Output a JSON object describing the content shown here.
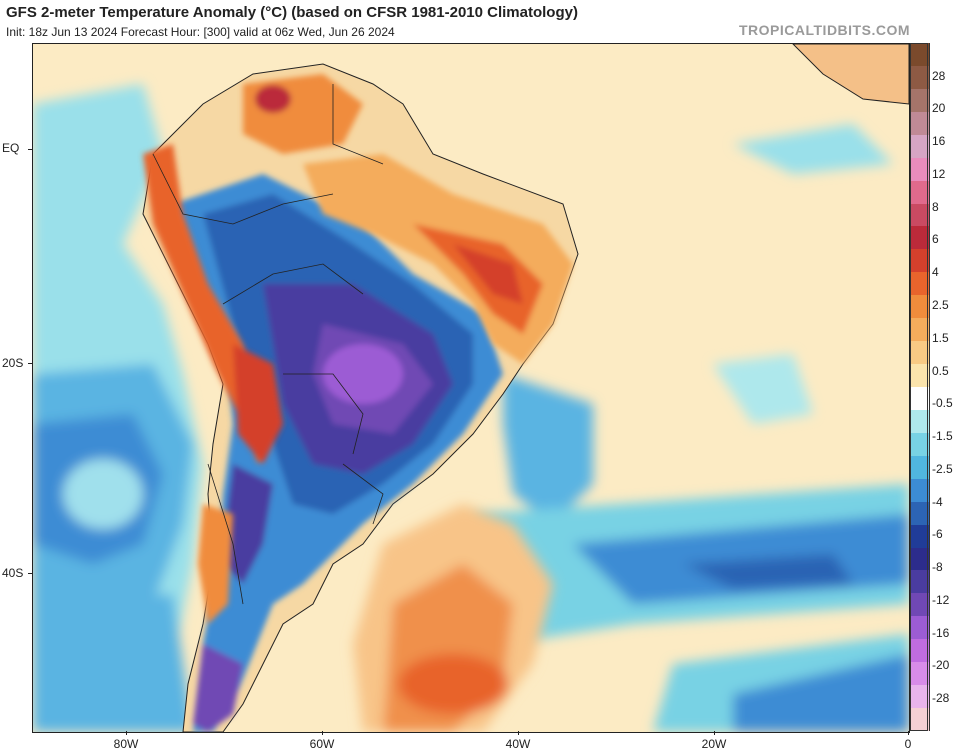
{
  "header": {
    "title": "GFS 2-meter Temperature Anomaly (°C) (based on CFSR 1981-2010 Climatology)",
    "subtitle": "Init: 18z Jun 13 2024   Forecast Hour: [300]   valid at 06z Wed, Jun 26 2024",
    "brand": "TROPICALTIDBITS.COM"
  },
  "axes": {
    "lat_labels": [
      "EQ",
      "20S",
      "40S"
    ],
    "lon_labels": [
      "80W",
      "60W",
      "40W",
      "20W",
      "0"
    ]
  },
  "colorbar": {
    "labels": [
      "28",
      "20",
      "16",
      "12",
      "8",
      "6",
      "4",
      "2.5",
      "1.5",
      "0.5",
      "-0.5",
      "-1.5",
      "-2.5",
      "-4",
      "-6",
      "-8",
      "-12",
      "-16",
      "-20",
      "-28"
    ],
    "colors": [
      "#7b4a2c",
      "#8e5a44",
      "#a5746a",
      "#c08a96",
      "#d6a5c4",
      "#e98cbc",
      "#e06a8c",
      "#c94a62",
      "#bb2a3a",
      "#d4402c",
      "#e8642c",
      "#f08c3c",
      "#f4ac5c",
      "#f8ca84",
      "#fbe4ac",
      "#ffffff",
      "#aee8ec",
      "#78d2e4",
      "#50b6e0",
      "#3c8cd4",
      "#2c64b4",
      "#203c98",
      "#2c2c8c",
      "#4a3ca0",
      "#7048b4",
      "#9c5cd4",
      "#c06ce0",
      "#d88ce8",
      "#e8b4ec",
      "#f4d0d4"
    ]
  },
  "map": {
    "land_color": "#f6d8a4",
    "ocean_warm_color": "#fcebc4",
    "ocean_cool_color": "#78d2e4"
  }
}
